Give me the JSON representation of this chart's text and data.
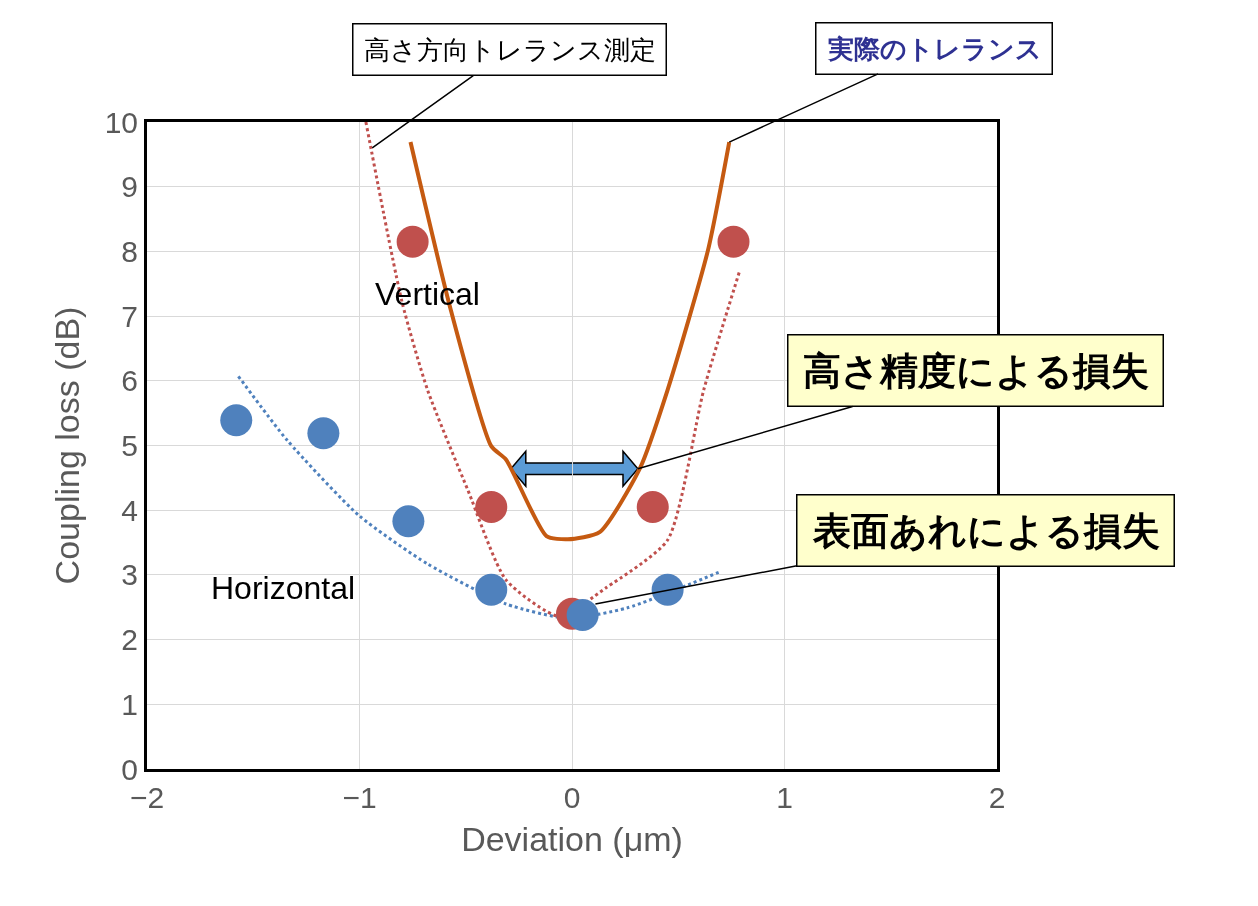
{
  "chart_data": {
    "type": "scatter",
    "xlabel": "Deviation (μm)",
    "ylabel": "Coupling loss (dB)",
    "xlim": [
      -2,
      2
    ],
    "ylim": [
      0,
      10
    ],
    "xticks": [
      {
        "value": -2,
        "label": "−2"
      },
      {
        "value": -1,
        "label": "−1"
      },
      0,
      1,
      2
    ],
    "yticks": [
      0,
      1,
      2,
      3,
      4,
      5,
      6,
      7,
      8,
      9,
      10
    ],
    "grid": true,
    "series": [
      {
        "type": "line",
        "color": "#c0504d",
        "line_style": "dotted",
        "marker": "none",
        "x": [
          -0.97,
          -0.8,
          -0.68,
          -0.49,
          -0.31,
          -0.06,
          0.16,
          0.45,
          0.62,
          0.79
        ],
        "values": [
          10,
          7.22,
          5.86,
          4.31,
          2.92,
          2.36,
          2.8,
          3.54,
          5.86,
          7.71
        ]
      },
      {
        "type": "line",
        "color": "#4f81bd",
        "line_style": "dotted",
        "marker": "none",
        "x": [
          -1.57,
          -1.34,
          -1.0,
          -0.68,
          -0.31,
          -0.02,
          0.26,
          0.69
        ],
        "values": [
          6.07,
          5.08,
          3.91,
          3.17,
          2.55,
          2.33,
          2.49,
          3.04
        ]
      },
      {
        "type": "line",
        "color": "#c55a11",
        "line_style": "solid",
        "marker": "none",
        "x": [
          -0.76,
          -0.57,
          -0.38,
          -0.31,
          -0.12,
          -0.02,
          0.13,
          0.32,
          0.45,
          0.64,
          0.74
        ],
        "values": [
          9.69,
          7.09,
          4.99,
          4.78,
          3.6,
          3.55,
          3.66,
          4.65,
          5.86,
          8.02,
          9.69
        ]
      },
      {
        "color": "#c0504d",
        "marker": "circle",
        "x": [
          -0.75,
          -0.38,
          0,
          0.38,
          0.76
        ],
        "values": [
          8.15,
          4.05,
          2.4,
          4.05,
          8.15
        ]
      },
      {
        "color": "#4f81bd",
        "marker": "circle",
        "x": [
          -1.58,
          -1.17,
          -0.77,
          -0.38,
          0.05,
          0.45
        ],
        "values": [
          5.39,
          5.19,
          3.83,
          2.77,
          2.38,
          2.77
        ]
      }
    ],
    "annotations": [
      "Vertical",
      "Horizontal",
      {
        "text": "高さ方向トレランス測定",
        "x": -0.94,
        "y": 9.6
      },
      {
        "text": "実際のトレランス",
        "x": 0.74,
        "y": 9.69
      },
      {
        "text": "高さ精度による損失",
        "x": 0.31,
        "y": 4.64
      },
      {
        "text": "表面あれによる損失",
        "x": 0.11,
        "y": 2.55
      }
    ]
  }
}
